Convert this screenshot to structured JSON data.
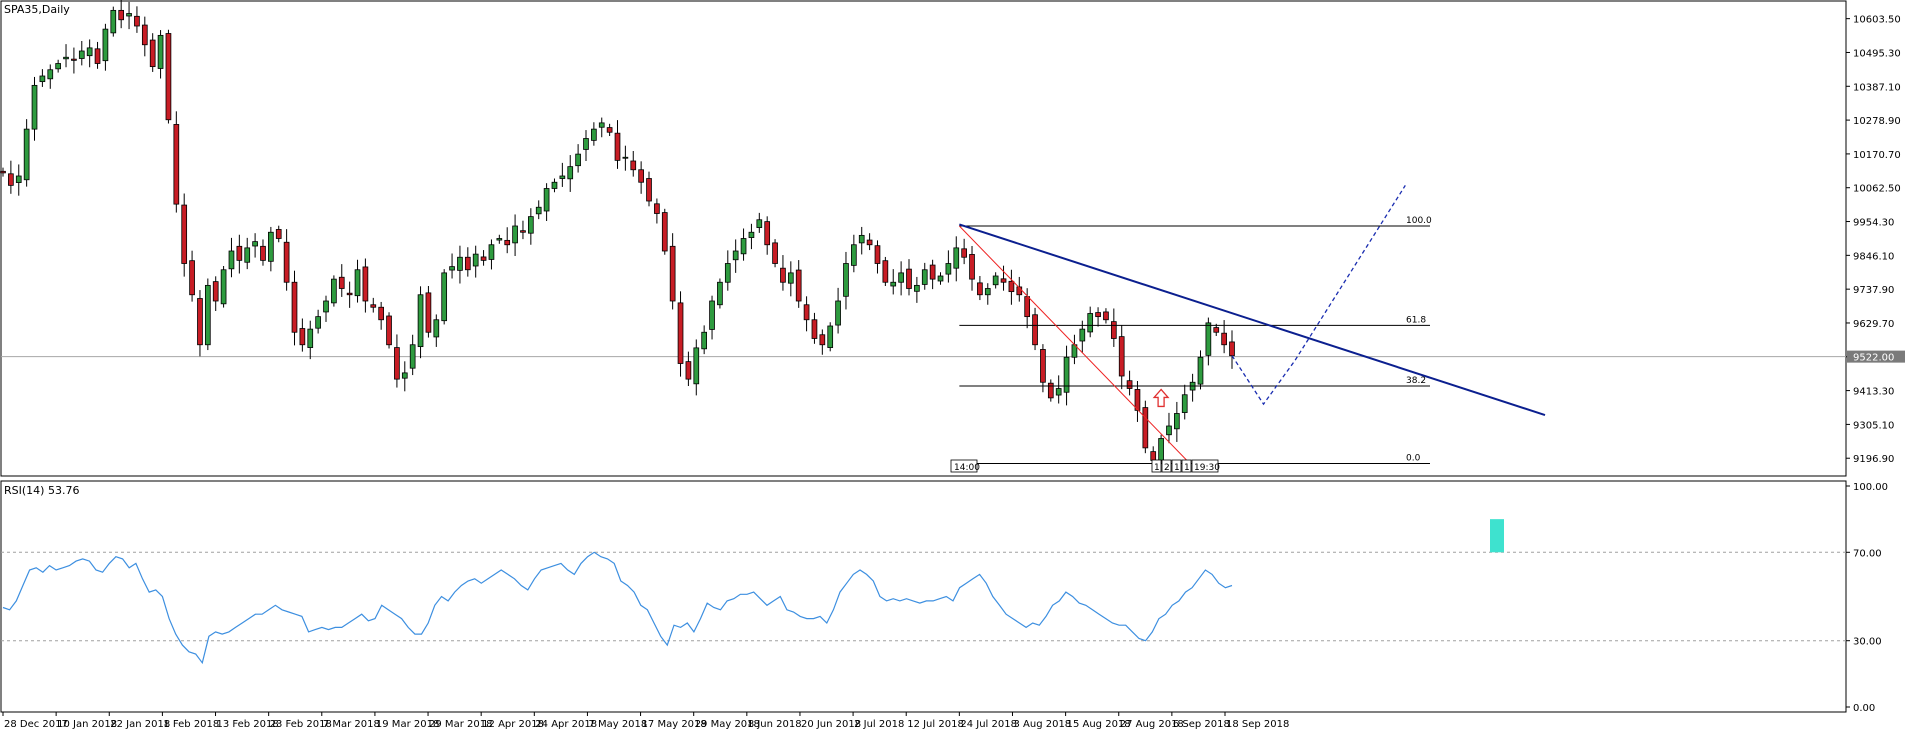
{
  "chart_data": [
    {
      "type": "candlestick",
      "title": "SPA35,Daily",
      "ylim": [
        9140,
        10660
      ],
      "y_ticks": [
        "10603.50",
        "10495.30",
        "10387.10",
        "10278.90",
        "10170.70",
        "10062.50",
        "9954.30",
        "9846.10",
        "9737.90",
        "9629.70",
        "9521.50",
        "9413.30",
        "9305.10",
        "9196.90"
      ],
      "current_price": "9522.00",
      "x_ticks": [
        "28 Dec 2017",
        "10 Jan 2018",
        "22 Jan 2018",
        "1 Feb 2018",
        "13 Feb 2018",
        "23 Feb 2018",
        "7 Mar 2018",
        "19 Mar 2018",
        "29 Mar 2018",
        "12 Apr 2018",
        "24 Apr 2018",
        "7 May 2018",
        "17 May 2018",
        "29 May 2018",
        "8 Jun 2018",
        "20 Jun 2018",
        "2 Jul 2018",
        "12 Jul 2018",
        "24 Jul 2018",
        "3 Aug 2018",
        "15 Aug 2018",
        "27 Aug 2018",
        "6 Sep 2018",
        "18 Sep 2018"
      ],
      "close_series": [
        10110,
        10070,
        10100,
        10250,
        10390,
        10420,
        10440,
        10460,
        10480,
        10470,
        10500,
        10510,
        10460,
        10570,
        10630,
        10600,
        10620,
        10580,
        10520,
        10450,
        10550,
        10280,
        10010,
        9820,
        9720,
        9560,
        9750,
        9700,
        9800,
        9860,
        9830,
        9870,
        9890,
        9830,
        9920,
        9900,
        9760,
        9600,
        9560,
        9610,
        9650,
        9700,
        9770,
        9740,
        9720,
        9800,
        9700,
        9680,
        9640,
        9560,
        9450,
        9470,
        9560,
        9720,
        9600,
        9640,
        9790,
        9810,
        9840,
        9800,
        9850,
        9830,
        9880,
        9900,
        9880,
        9940,
        9920,
        9970,
        10000,
        10060,
        10080,
        10100,
        10130,
        10170,
        10220,
        10250,
        10270,
        10240,
        10150,
        10160,
        10120,
        10080,
        10020,
        9980,
        9860,
        9700,
        9500,
        9450,
        9550,
        9600,
        9700,
        9760,
        9820,
        9860,
        9900,
        9920,
        9960,
        9880,
        9820,
        9760,
        9790,
        9700,
        9640,
        9580,
        9560,
        9620,
        9700,
        9820,
        9880,
        9910,
        9880,
        9820,
        9760,
        9760,
        9790,
        9740,
        9750,
        9800,
        9770,
        9780,
        9820,
        9870,
        9840,
        9770,
        9720,
        9740,
        9780,
        9760,
        9730,
        9720,
        9650,
        9560,
        9440,
        9390,
        9420,
        9520,
        9560,
        9610,
        9660,
        9650,
        9640,
        9580,
        9460,
        9420,
        9350,
        9230,
        9190,
        9260,
        9300,
        9340,
        9400,
        9440,
        9520,
        9630,
        9600,
        9560,
        9525
      ],
      "annotations": {
        "fibonacci_levels": [
          {
            "label": "100.0",
            "price": 9940
          },
          {
            "label": "61.8",
            "price": 9622
          },
          {
            "label": "38.2",
            "price": 9428
          },
          {
            "label": "0.0",
            "price": 9180
          }
        ],
        "fib_anchor_high": [
          "24 Jul 2018",
          9940
        ],
        "fib_anchor_low": [
          "6 Sep 2018",
          9180
        ],
        "trendline_start": [
          "24 Jul 2018",
          9945
        ],
        "trendline_end": [
          "26 Sep 2018",
          9335
        ],
        "projection_points": [
          [
            9525,
            0
          ],
          [
            9370,
            4
          ],
          [
            9510,
            8
          ],
          [
            10070,
            22
          ]
        ],
        "time_labels": [
          "14:00",
          "1",
          "2",
          "1",
          "1",
          "19:30"
        ]
      }
    },
    {
      "type": "line",
      "title": "RSI(14) 53.76",
      "ylim": [
        0,
        100
      ],
      "y_ticks": [
        "100.00",
        "70.00",
        "30.00",
        "0.00"
      ],
      "levels": [
        70,
        30
      ],
      "values": [
        45,
        44,
        48,
        55,
        62,
        63,
        61,
        64,
        62,
        63,
        64,
        66,
        67,
        66,
        62,
        61,
        65,
        68,
        67,
        63,
        65,
        58,
        52,
        53,
        50,
        40,
        33,
        28,
        25,
        24,
        20,
        32,
        34,
        33,
        34,
        36,
        38,
        40,
        42,
        42,
        44,
        46,
        44,
        43,
        42,
        41,
        34,
        35,
        36,
        35,
        36,
        36,
        38,
        40,
        42,
        39,
        40,
        46,
        44,
        42,
        40,
        36,
        33,
        33,
        38,
        46,
        50,
        48,
        52,
        55,
        57,
        58,
        56,
        58,
        60,
        62,
        60,
        58,
        55,
        53,
        58,
        62,
        63,
        64,
        65,
        62,
        60,
        65,
        68,
        70,
        68,
        67,
        65,
        57,
        55,
        52,
        46,
        44,
        38,
        32,
        28,
        37,
        36,
        38,
        34,
        40,
        47,
        45,
        44,
        48,
        49,
        51,
        51,
        52,
        49,
        46,
        48,
        50,
        44,
        43,
        41,
        40,
        40,
        41,
        38,
        44,
        52,
        56,
        60,
        62,
        60,
        57,
        50,
        48,
        49,
        48,
        49,
        48,
        47,
        48,
        48,
        49,
        50,
        48,
        54,
        56,
        58,
        60,
        56,
        50,
        46,
        42,
        40,
        38,
        36,
        38,
        37,
        41,
        46,
        48,
        52,
        50,
        47,
        46,
        44,
        42,
        40,
        38,
        37,
        37,
        34,
        31,
        30,
        34,
        40,
        42,
        46,
        48,
        52,
        54,
        58,
        62,
        60,
        56,
        54,
        55
      ]
    }
  ]
}
